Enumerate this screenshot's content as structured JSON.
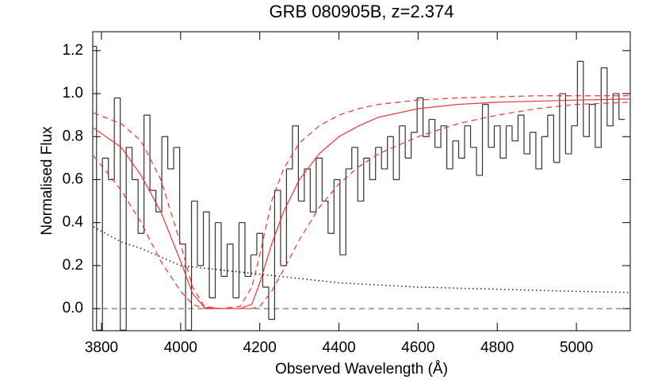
{
  "chart_data": {
    "type": "spectrum",
    "title": "GRB 080905B, z=2.374",
    "x_label": "Observed Wavelength (Å)",
    "y_label": "Normalised Flux",
    "xlim": [
      3778,
      5136
    ],
    "ylim": [
      -0.103,
      1.288
    ],
    "xticks": [
      3800,
      4000,
      4200,
      4400,
      4600,
      4800,
      5000
    ],
    "yticks": [
      {
        "value": 0,
        "label": "0.0"
      },
      0.2,
      0.4,
      0.6,
      0.8,
      {
        "value": 1,
        "label": "1.0"
      },
      1.2
    ],
    "hline": {
      "value": 0,
      "color": "#555555",
      "style": "dashed"
    },
    "series": [
      {
        "style": "step",
        "color": "#333333",
        "x": [
          3780,
          3795,
          3810,
          3825,
          3840,
          3855,
          3870,
          3885,
          3900,
          3915,
          3930,
          3945,
          3960,
          3975,
          3990,
          4005,
          4020,
          4035,
          4050,
          4065,
          4080,
          4095,
          4110,
          4125,
          4140,
          4155,
          4170,
          4185,
          4200,
          4215,
          4230,
          4245,
          4260,
          4275,
          4290,
          4305,
          4320,
          4335,
          4350,
          4365,
          4380,
          4395,
          4410,
          4425,
          4440,
          4455,
          4470,
          4485,
          4500,
          4515,
          4530,
          4545,
          4560,
          4575,
          4590,
          4605,
          4620,
          4635,
          4650,
          4665,
          4680,
          4695,
          4710,
          4725,
          4740,
          4755,
          4770,
          4785,
          4800,
          4815,
          4830,
          4845,
          4860,
          4875,
          4890,
          4905,
          4920,
          4935,
          4950,
          4965,
          4980,
          4995,
          5010,
          5025,
          5040,
          5055,
          5070,
          5085,
          5100,
          5115
        ],
        "values": [
          1.22,
          -0.1,
          0.7,
          0.6,
          0.98,
          -0.1,
          0.75,
          0.6,
          0.35,
          0.9,
          0.55,
          0.45,
          0.8,
          0.65,
          0.75,
          0.3,
          -0.1,
          0.5,
          0.2,
          0.45,
          0.05,
          0.4,
          0.15,
          0.3,
          0.05,
          0.4,
          0.15,
          0.25,
          0.35,
          0.1,
          -0.05,
          0.55,
          0.2,
          0.65,
          0.85,
          0.5,
          0.65,
          0.45,
          0.7,
          0.5,
          0.35,
          0.6,
          0.25,
          0.65,
          0.75,
          0.5,
          0.7,
          0.6,
          0.75,
          0.65,
          0.8,
          0.6,
          0.85,
          0.7,
          0.82,
          0.98,
          0.8,
          0.88,
          0.75,
          0.85,
          0.65,
          0.78,
          0.7,
          0.85,
          0.75,
          0.62,
          0.95,
          0.75,
          0.85,
          0.7,
          0.85,
          0.78,
          0.9,
          0.72,
          0.82,
          0.65,
          0.8,
          0.9,
          0.68,
          1.0,
          0.72,
          0.85,
          1.15,
          0.8,
          0.95,
          0.75,
          1.12,
          0.85,
          1.0,
          0.88
        ]
      },
      {
        "style": "dotted",
        "color": "#222222",
        "x": [
          3780,
          3850,
          3900,
          3950,
          4000,
          4100,
          4200,
          4300,
          4400,
          4500,
          4600,
          4700,
          4800,
          4900,
          5000,
          5136
        ],
        "values": [
          0.38,
          0.31,
          0.28,
          0.24,
          0.2,
          0.18,
          0.16,
          0.14,
          0.12,
          0.11,
          0.1,
          0.095,
          0.09,
          0.085,
          0.08,
          0.075
        ]
      },
      {
        "style": "solid",
        "color": "#ee3333",
        "x": [
          3780,
          3850,
          3900,
          3950,
          4000,
          4030,
          4060,
          4100,
          4150,
          4180,
          4200,
          4230,
          4260,
          4300,
          4350,
          4400,
          4450,
          4500,
          4600,
          4700,
          4800,
          4900,
          5000,
          5136
        ],
        "values": [
          0.84,
          0.75,
          0.62,
          0.45,
          0.22,
          0.07,
          0.005,
          0,
          0,
          0.02,
          0.12,
          0.3,
          0.45,
          0.6,
          0.72,
          0.8,
          0.85,
          0.89,
          0.93,
          0.95,
          0.96,
          0.965,
          0.97,
          0.975
        ]
      },
      {
        "style": "dashed",
        "color": "#ee3333",
        "x": [
          3780,
          3850,
          3900,
          3950,
          4000,
          4030,
          4060,
          4100,
          4150,
          4180,
          4200,
          4230,
          4260,
          4300,
          4350,
          4400,
          4450,
          4500,
          4600,
          4700,
          4800,
          4900,
          5000,
          5136
        ],
        "values": [
          0.91,
          0.86,
          0.78,
          0.6,
          0.3,
          0.1,
          0.01,
          0,
          0.01,
          0.1,
          0.25,
          0.5,
          0.65,
          0.77,
          0.85,
          0.9,
          0.93,
          0.95,
          0.97,
          0.98,
          0.985,
          0.99,
          0.99,
          0.99
        ]
      },
      {
        "style": "dashed",
        "color": "#ee3333",
        "x": [
          3780,
          3850,
          3900,
          3950,
          4000,
          4030,
          4060,
          4100,
          4150,
          4180,
          4200,
          4230,
          4260,
          4300,
          4350,
          4400,
          4450,
          4500,
          4600,
          4700,
          4800,
          4900,
          5000,
          5136
        ],
        "values": [
          0.71,
          0.55,
          0.4,
          0.22,
          0.08,
          0.02,
          0,
          0,
          0,
          0,
          0.01,
          0.08,
          0.18,
          0.32,
          0.47,
          0.58,
          0.66,
          0.72,
          0.8,
          0.86,
          0.9,
          0.93,
          0.95,
          0.96
        ]
      }
    ]
  }
}
